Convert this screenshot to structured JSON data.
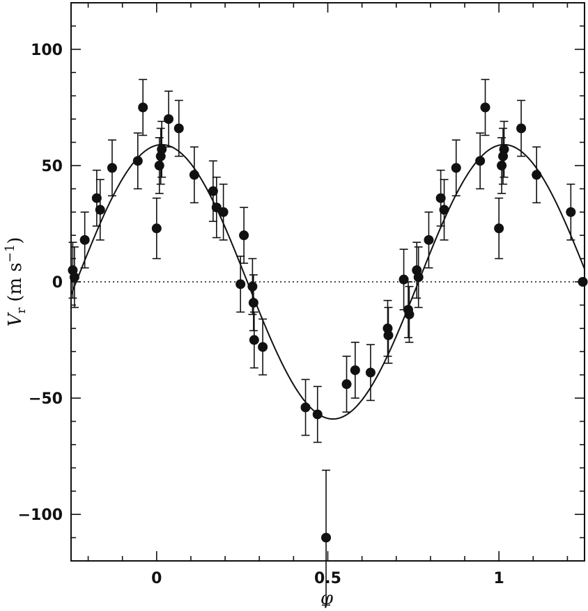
{
  "chart_data": {
    "type": "scatter",
    "xlabel": "φ",
    "ylabel": {
      "v": "V",
      "sub": "r",
      "unit": " (m s",
      "exp": "−1",
      "close": ")"
    },
    "xlim": [
      -0.25,
      1.25
    ],
    "ylim": [
      -120,
      120
    ],
    "x_ticks": [
      {
        "value": 0,
        "label": "0"
      },
      {
        "value": 0.5,
        "label": "0.5"
      },
      {
        "value": 1,
        "label": "1"
      }
    ],
    "y_ticks": [
      {
        "value": 100,
        "label": "100"
      },
      {
        "value": 50,
        "label": "50"
      },
      {
        "value": 0,
        "label": "0"
      },
      {
        "value": -50,
        "label": "−50"
      },
      {
        "value": -100,
        "label": "−100"
      }
    ],
    "grid": false,
    "legend": false,
    "zero_line": {
      "y": 0,
      "style": "dotted"
    },
    "fit": {
      "type": "sinusoid",
      "amplitude": 59,
      "phase_of_max": 0.015,
      "period": 1
    },
    "points": [
      {
        "x": -0.245,
        "y": 5,
        "err": 12
      },
      {
        "x": -0.24,
        "y": 2,
        "err": 13
      },
      {
        "x": -0.21,
        "y": 18,
        "err": 12
      },
      {
        "x": -0.175,
        "y": 36,
        "err": 12
      },
      {
        "x": -0.165,
        "y": 31,
        "err": 13
      },
      {
        "x": -0.13,
        "y": 49,
        "err": 12
      },
      {
        "x": -0.055,
        "y": 52,
        "err": 12
      },
      {
        "x": -0.04,
        "y": 75,
        "err": 12
      },
      {
        "x": 0.0,
        "y": 23,
        "err": 13
      },
      {
        "x": 0.008,
        "y": 50,
        "err": 12
      },
      {
        "x": 0.012,
        "y": 54,
        "err": 12
      },
      {
        "x": 0.015,
        "y": 57,
        "err": 12
      },
      {
        "x": 0.035,
        "y": 70,
        "err": 12
      },
      {
        "x": 0.065,
        "y": 66,
        "err": 12
      },
      {
        "x": 0.11,
        "y": 46,
        "err": 12
      },
      {
        "x": 0.165,
        "y": 39,
        "err": 13
      },
      {
        "x": 0.175,
        "y": 32,
        "err": 13
      },
      {
        "x": 0.195,
        "y": 30,
        "err": 12
      },
      {
        "x": 0.245,
        "y": -1,
        "err": 12
      },
      {
        "x": 0.255,
        "y": 20,
        "err": 12
      },
      {
        "x": 0.28,
        "y": -2,
        "err": 12
      },
      {
        "x": 0.283,
        "y": -9,
        "err": 12
      },
      {
        "x": 0.285,
        "y": -25,
        "err": 12
      },
      {
        "x": 0.31,
        "y": -28,
        "err": 12
      },
      {
        "x": 0.435,
        "y": -54,
        "err": 12
      },
      {
        "x": 0.47,
        "y": -57,
        "err": 12
      },
      {
        "x": 0.495,
        "y": -110,
        "err": 29
      },
      {
        "x": 0.555,
        "y": -44,
        "err": 12
      },
      {
        "x": 0.58,
        "y": -38,
        "err": 12
      },
      {
        "x": 0.625,
        "y": -39,
        "err": 12
      },
      {
        "x": 0.675,
        "y": -20,
        "err": 12
      },
      {
        "x": 0.677,
        "y": -23,
        "err": 12
      },
      {
        "x": 0.722,
        "y": 1,
        "err": 13
      },
      {
        "x": 0.735,
        "y": -12,
        "err": 12
      },
      {
        "x": 0.738,
        "y": -14,
        "err": 12
      },
      {
        "x": 0.76,
        "y": 5,
        "err": 12
      },
      {
        "x": 0.765,
        "y": 2,
        "err": 13
      },
      {
        "x": 0.795,
        "y": 18,
        "err": 12
      },
      {
        "x": 0.83,
        "y": 36,
        "err": 12
      },
      {
        "x": 0.84,
        "y": 31,
        "err": 13
      },
      {
        "x": 0.875,
        "y": 49,
        "err": 12
      },
      {
        "x": 0.945,
        "y": 52,
        "err": 12
      },
      {
        "x": 0.96,
        "y": 75,
        "err": 12
      },
      {
        "x": 1.0,
        "y": 23,
        "err": 13
      },
      {
        "x": 1.008,
        "y": 50,
        "err": 12
      },
      {
        "x": 1.012,
        "y": 54,
        "err": 12
      },
      {
        "x": 1.015,
        "y": 57,
        "err": 12
      },
      {
        "x": 1.065,
        "y": 66,
        "err": 12
      },
      {
        "x": 1.11,
        "y": 46,
        "err": 12
      },
      {
        "x": 1.21,
        "y": 30,
        "err": 12
      },
      {
        "x": 1.245,
        "y": 0,
        "err": 0
      }
    ],
    "colors": {
      "ink": "#111111",
      "background": "#ffffff"
    }
  }
}
